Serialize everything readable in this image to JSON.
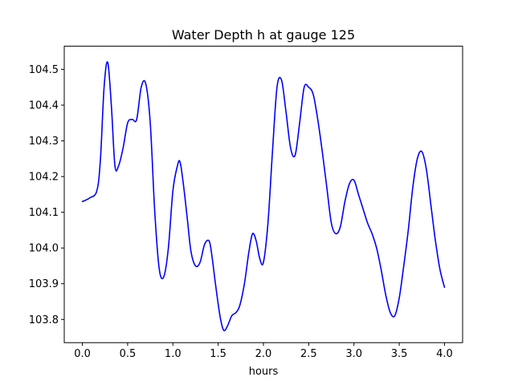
{
  "chart_data": {
    "type": "line",
    "title": "Water Depth h at gauge 125",
    "xlabel": "hours",
    "ylabel": "",
    "xlim": [
      -0.2,
      4.2
    ],
    "ylim": [
      103.735,
      104.565
    ],
    "xticks": [
      0.0,
      0.5,
      1.0,
      1.5,
      2.0,
      2.5,
      3.0,
      3.5,
      4.0
    ],
    "xtick_labels": [
      "0.0",
      "0.5",
      "1.0",
      "1.5",
      "2.0",
      "2.5",
      "3.0",
      "3.5",
      "4.0"
    ],
    "yticks": [
      103.8,
      103.9,
      104.0,
      104.1,
      104.2,
      104.3,
      104.4,
      104.5
    ],
    "ytick_labels": [
      "103.8",
      "103.9",
      "104.0",
      "104.1",
      "104.2",
      "104.3",
      "104.4",
      "104.5"
    ],
    "grid": false,
    "series": [
      {
        "color": "#0000ff",
        "x": [
          0.0,
          0.08,
          0.16,
          0.2,
          0.24,
          0.28,
          0.32,
          0.36,
          0.4,
          0.45,
          0.5,
          0.55,
          0.6,
          0.65,
          0.7,
          0.75,
          0.8,
          0.85,
          0.9,
          0.95,
          1.0,
          1.05,
          1.08,
          1.12,
          1.16,
          1.2,
          1.25,
          1.3,
          1.35,
          1.4,
          1.43,
          1.47,
          1.52,
          1.56,
          1.6,
          1.65,
          1.7,
          1.74,
          1.79,
          1.84,
          1.88,
          1.92,
          1.96,
          2.0,
          2.05,
          2.1,
          2.15,
          2.2,
          2.25,
          2.3,
          2.35,
          2.4,
          2.45,
          2.5,
          2.55,
          2.6,
          2.65,
          2.7,
          2.75,
          2.8,
          2.85,
          2.9,
          2.95,
          3.0,
          3.05,
          3.1,
          3.15,
          3.2,
          3.25,
          3.3,
          3.35,
          3.4,
          3.45,
          3.5,
          3.55,
          3.6,
          3.65,
          3.7,
          3.75,
          3.8,
          3.85,
          3.9,
          3.95,
          4.0
        ],
        "y": [
          104.13,
          104.14,
          104.16,
          104.25,
          104.45,
          104.52,
          104.4,
          104.23,
          104.23,
          104.28,
          104.35,
          104.36,
          104.36,
          104.45,
          104.46,
          104.35,
          104.1,
          103.94,
          103.92,
          104.0,
          104.16,
          104.23,
          104.24,
          104.17,
          104.08,
          103.99,
          103.95,
          103.96,
          104.01,
          104.02,
          103.98,
          103.9,
          103.81,
          103.77,
          103.78,
          103.81,
          103.82,
          103.84,
          103.9,
          103.99,
          104.04,
          104.02,
          103.97,
          103.96,
          104.07,
          104.27,
          104.45,
          104.47,
          104.38,
          104.28,
          104.26,
          104.35,
          104.45,
          104.45,
          104.43,
          104.36,
          104.27,
          104.17,
          104.07,
          104.04,
          104.06,
          104.13,
          104.18,
          104.19,
          104.15,
          104.11,
          104.07,
          104.04,
          104.0,
          103.94,
          103.87,
          103.82,
          103.81,
          103.86,
          103.95,
          104.05,
          104.17,
          104.25,
          104.27,
          104.22,
          104.12,
          104.02,
          103.94,
          103.89
        ]
      }
    ]
  }
}
